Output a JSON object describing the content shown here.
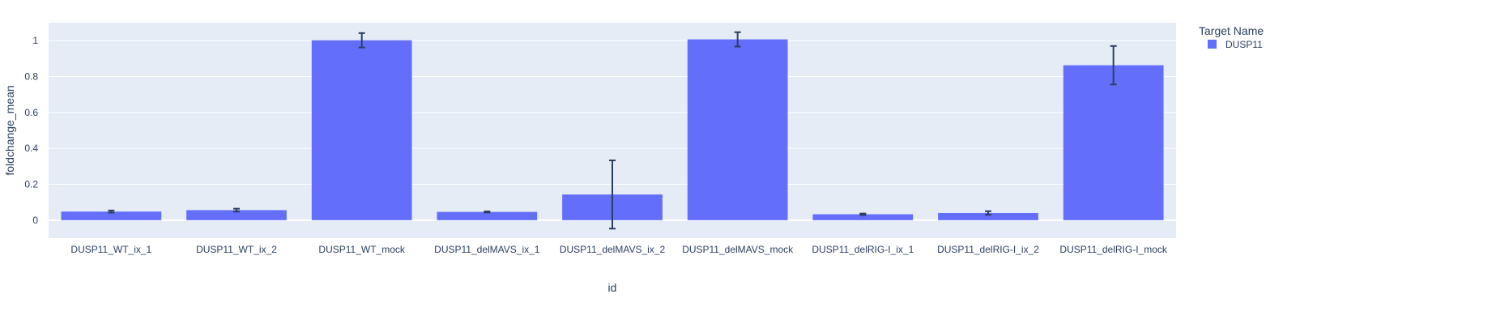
{
  "chart_data": {
    "type": "bar",
    "xlabel": "id",
    "ylabel": "foldchange_mean",
    "ylim": [
      -0.1,
      1.1
    ],
    "yticks": [
      0,
      0.2,
      0.4,
      0.6,
      0.8,
      1
    ],
    "ytick_labels": [
      "0",
      "0.2",
      "0.4",
      "0.6",
      "0.8",
      "1"
    ],
    "grid": true,
    "legend": {
      "title": "Target Name",
      "placement": "top-right"
    },
    "categories": [
      "DUSP11_WT_ix_1",
      "DUSP11_WT_ix_2",
      "DUSP11_WT_mock",
      "DUSP11_delMAVS_ix_1",
      "DUSP11_delMAVS_ix_2",
      "DUSP11_delMAVS_mock",
      "DUSP11_delRIG-I_ix_1",
      "DUSP11_delRIG-I_ix_2",
      "DUSP11_delRIG-I_mock"
    ],
    "series": [
      {
        "name": "DUSP11",
        "color": "#636efa",
        "values": [
          0.048,
          0.056,
          1.002,
          0.046,
          0.143,
          1.007,
          0.033,
          0.04,
          0.863
        ],
        "error": [
          0.006,
          0.008,
          0.04,
          0.003,
          0.19,
          0.04,
          0.004,
          0.01,
          0.107
        ]
      }
    ]
  }
}
